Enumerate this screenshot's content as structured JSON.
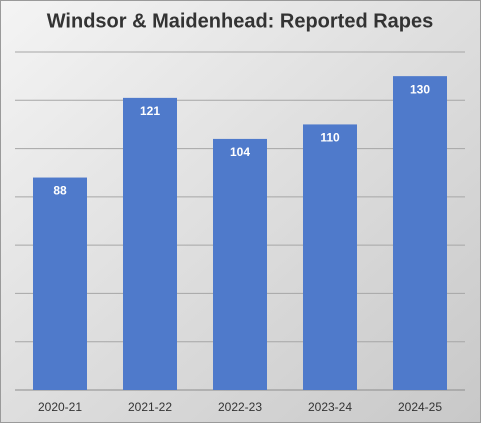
{
  "chart_data": {
    "type": "bar",
    "title": "Windsor & Maidenhead: Reported Rapes",
    "categories": [
      "2020-21",
      "2021-22",
      "2022-23",
      "2023-24",
      "2024-25"
    ],
    "values": [
      88,
      121,
      104,
      110,
      130
    ],
    "color": "#4f7acb",
    "ylim": [
      0,
      140
    ],
    "yticks": [
      0,
      20,
      40,
      60,
      80,
      100,
      120,
      140
    ],
    "grid": true
  }
}
